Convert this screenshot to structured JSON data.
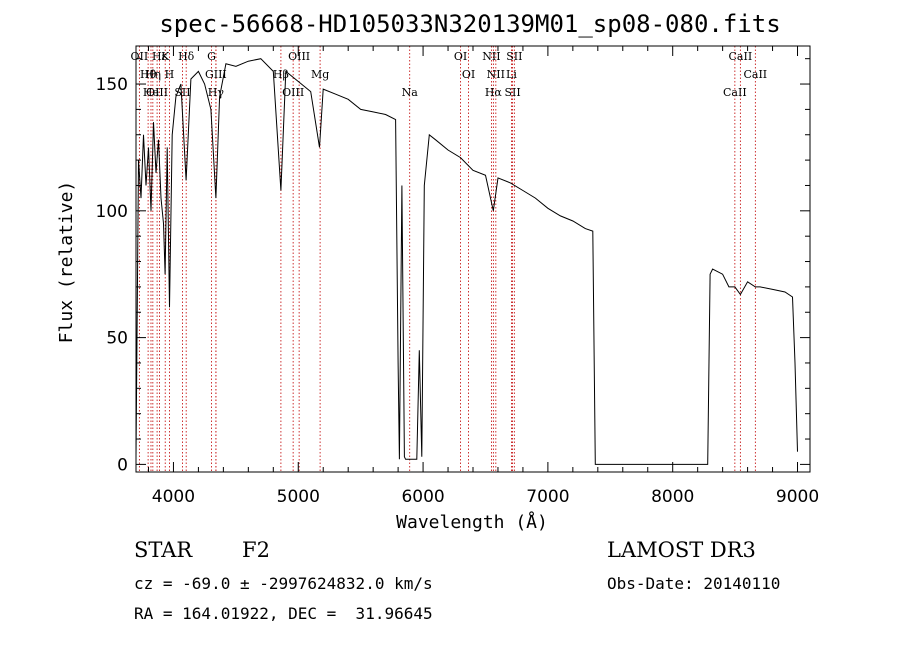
{
  "chart_data": {
    "type": "line",
    "title": "spec-56668-HD105033N320139M01_sp08-080.fits",
    "xlabel": "Wavelength (Å)",
    "ylabel": "Flux (relative)",
    "xlim": [
      3700,
      9100
    ],
    "ylim": [
      -3,
      165
    ],
    "xticks": [
      4000,
      5000,
      6000,
      7000,
      8000,
      9000
    ],
    "yticks": [
      0,
      50,
      100,
      150
    ],
    "grid": false,
    "series": [
      {
        "color": "#000000",
        "x": [
          3700,
          3720,
          3740,
          3760,
          3780,
          3800,
          3820,
          3840,
          3860,
          3880,
          3900,
          3920,
          3933,
          3950,
          3968,
          3990,
          4020,
          4060,
          4101,
          4140,
          4200,
          4250,
          4300,
          4340,
          4370,
          4420,
          4500,
          4600,
          4700,
          4800,
          4861,
          4900,
          5000,
          5100,
          5170,
          5200,
          5300,
          5400,
          5500,
          5600,
          5700,
          5780,
          5800,
          5810,
          5830,
          5850,
          5860,
          5900,
          5950,
          5970,
          5990,
          6010,
          6050,
          6100,
          6200,
          6300,
          6400,
          6500,
          6563,
          6600,
          6700,
          6800,
          6900,
          7000,
          7100,
          7200,
          7300,
          7360,
          7380,
          7400,
          7500,
          7600,
          7700,
          7800,
          7900,
          8000,
          8100,
          8200,
          8280,
          8300,
          8320,
          8400,
          8450,
          8498,
          8542,
          8600,
          8662,
          8700,
          8800,
          8900,
          8960,
          8980,
          9000
        ],
        "y": [
          3,
          120,
          105,
          130,
          110,
          125,
          100,
          135,
          115,
          128,
          105,
          95,
          75,
          125,
          62,
          130,
          145,
          150,
          112,
          152,
          155,
          150,
          140,
          105,
          145,
          158,
          157,
          159,
          160,
          155,
          108,
          155,
          151,
          147,
          125,
          148,
          146,
          144,
          140,
          139,
          138,
          136,
          40,
          2,
          110,
          3,
          2,
          2,
          2,
          45,
          3,
          110,
          130,
          128,
          124,
          121,
          116,
          114,
          100,
          113,
          111,
          108,
          105,
          101,
          98,
          96,
          93,
          92,
          0,
          0,
          0,
          0,
          0,
          0,
          0,
          0,
          0,
          0,
          0,
          75,
          77,
          75,
          70,
          70,
          67,
          72,
          70,
          70,
          69,
          68,
          66,
          40,
          5
        ]
      }
    ],
    "line_markers": [
      {
        "label": "OII",
        "x": 3727
      },
      {
        "label": "Hθ",
        "x": 3797
      },
      {
        "label": "OIII",
        "x": 3869
      },
      {
        "label": "Hε",
        "x": 3889
      },
      {
        "label": "Hη",
        "x": 3835
      },
      {
        "label": "He",
        "x": 3820
      },
      {
        "label": "K",
        "x": 3934
      },
      {
        "label": "H",
        "x": 3968
      },
      {
        "label": "SII",
        "x": 4072
      },
      {
        "label": "Hδ",
        "x": 4102
      },
      {
        "label": "GIII",
        "x": 4340
      },
      {
        "label": "Hγ",
        "x": 4340
      },
      {
        "label": "G",
        "x": 4305
      },
      {
        "label": "Hβ",
        "x": 4861
      },
      {
        "label": "OIII",
        "x": 4959
      },
      {
        "label": "OIII",
        "x": 5007
      },
      {
        "label": "Mg",
        "x": 5175
      },
      {
        "label": "Na",
        "x": 5893
      },
      {
        "label": "OI",
        "x": 6300
      },
      {
        "label": "OI",
        "x": 6364
      },
      {
        "label": "Hα",
        "x": 6563
      },
      {
        "label": "NII",
        "x": 6548
      },
      {
        "label": "NII",
        "x": 6583
      },
      {
        "label": "SII",
        "x": 6717
      },
      {
        "label": "SII",
        "x": 6731
      },
      {
        "label": "Li",
        "x": 6708
      },
      {
        "label": "CaII",
        "x": 8498
      },
      {
        "label": "CaII",
        "x": 8542
      },
      {
        "label": "CaII",
        "x": 8662
      }
    ]
  },
  "info": {
    "object_class": "STAR",
    "subclass": "F2",
    "survey": "LAMOST DR3",
    "redshift_line": "cz = -69.0 ± -2997624832.0 km/s",
    "obs_date": "Obs-Date: 20140110",
    "coords": "RA = 164.01922, DEC =  31.96645"
  }
}
